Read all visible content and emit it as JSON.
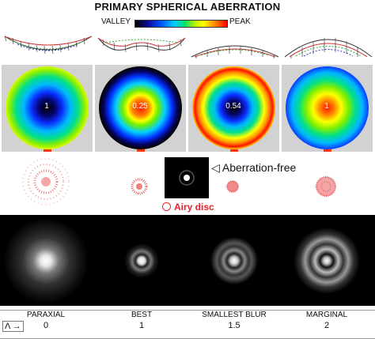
{
  "title": "PRIMARY SPHERICAL ABERRATION",
  "legend": {
    "valley": "VALLEY",
    "peak": "PEAK"
  },
  "panels": [
    {
      "center_value": "1",
      "center_color": "#000000"
    },
    {
      "center_value": "0.25",
      "center_color": "#ff1a00"
    },
    {
      "center_value": "0.54",
      "center_color": "#000000"
    },
    {
      "center_value": "1",
      "center_color": "#ff1a00"
    }
  ],
  "aberration_free_label": "◁ Aberration-free",
  "airy_disc_label": "Airy disc",
  "positions": [
    {
      "label": "PARAXIAL",
      "value": "0"
    },
    {
      "label": "BEST",
      "value": "1"
    },
    {
      "label": "SMALLEST BLUR",
      "value": "1.5"
    },
    {
      "label": "MARGINAL",
      "value": "2"
    }
  ],
  "lambda_label": "Λ →"
}
